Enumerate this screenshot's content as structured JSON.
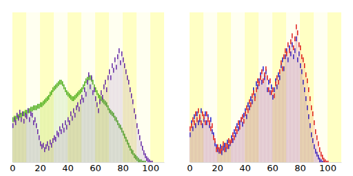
{
  "chart_data": [
    {
      "type": "bar",
      "tick_labels": "x",
      "x": [
        0,
        1,
        2,
        3,
        4,
        5,
        6,
        7,
        8,
        9,
        10,
        11,
        12,
        13,
        14,
        15,
        16,
        17,
        18,
        19,
        20,
        21,
        22,
        23,
        24,
        25,
        26,
        27,
        28,
        29,
        30,
        31,
        32,
        33,
        34,
        35,
        36,
        37,
        38,
        39,
        40,
        41,
        42,
        43,
        44,
        45,
        46,
        47,
        48,
        49,
        50,
        51,
        52,
        53,
        54,
        55,
        56,
        57,
        58,
        59,
        60,
        61,
        62,
        63,
        64,
        65,
        66,
        67,
        68,
        69,
        70,
        71,
        72,
        73,
        74,
        75,
        76,
        77,
        78,
        79,
        80,
        81,
        82,
        83,
        84,
        85,
        86,
        87,
        88,
        89,
        90,
        91,
        92,
        93,
        94,
        95,
        96,
        97,
        98,
        99,
        100,
        101,
        102,
        103,
        104
      ],
      "xlim": [
        0,
        110
      ],
      "xticks": [
        0,
        20,
        40,
        60,
        80,
        100
      ],
      "ylim": [
        0,
        100
      ],
      "series": [
        {
          "color": "#44aa11",
          "values": [
            30,
            31,
            31,
            32,
            32,
            33,
            33,
            34,
            34,
            35,
            35,
            36,
            36,
            37,
            37,
            38,
            38,
            38,
            39,
            39,
            40,
            40,
            41,
            42,
            43,
            44,
            45,
            47,
            48,
            50,
            51,
            52,
            53,
            54,
            55,
            55,
            54,
            52,
            50,
            48,
            47,
            46,
            45,
            44,
            44,
            45,
            46,
            47,
            48,
            49,
            50,
            52,
            54,
            56,
            57,
            58,
            58,
            57,
            55,
            52,
            50,
            48,
            46,
            45,
            44,
            43,
            42,
            41,
            40,
            38,
            36,
            35,
            34,
            33,
            31,
            30,
            28,
            26,
            25,
            23,
            21,
            19,
            17,
            15,
            13,
            11,
            9,
            8,
            6,
            5,
            4,
            3,
            2,
            2,
            1,
            1,
            1,
            0,
            0,
            0,
            0,
            0,
            0,
            0,
            0
          ]
        },
        {
          "color": "#5a1aa0",
          "values": [
            26,
            30,
            28,
            33,
            31,
            35,
            30,
            34,
            29,
            33,
            32,
            36,
            30,
            34,
            33,
            28,
            30,
            26,
            22,
            18,
            14,
            12,
            13,
            10,
            12,
            14,
            11,
            15,
            13,
            16,
            18,
            17,
            21,
            20,
            24,
            22,
            26,
            23,
            28,
            25,
            30,
            28,
            34,
            31,
            36,
            33,
            38,
            40,
            37,
            42,
            45,
            43,
            50,
            47,
            55,
            60,
            52,
            58,
            48,
            50,
            44,
            40,
            36,
            42,
            48,
            45,
            52,
            55,
            50,
            58,
            62,
            58,
            66,
            63,
            70,
            65,
            72,
            76,
            68,
            74,
            70,
            66,
            62,
            58,
            55,
            50,
            46,
            42,
            36,
            32,
            26,
            22,
            18,
            14,
            11,
            8,
            6,
            4,
            3,
            2,
            1,
            1,
            0,
            0,
            0
          ]
        }
      ]
    },
    {
      "type": "bar",
      "tick_labels": "x",
      "x": [
        0,
        1,
        2,
        3,
        4,
        5,
        6,
        7,
        8,
        9,
        10,
        11,
        12,
        13,
        14,
        15,
        16,
        17,
        18,
        19,
        20,
        21,
        22,
        23,
        24,
        25,
        26,
        27,
        28,
        29,
        30,
        31,
        32,
        33,
        34,
        35,
        36,
        37,
        38,
        39,
        40,
        41,
        42,
        43,
        44,
        45,
        46,
        47,
        48,
        49,
        50,
        51,
        52,
        53,
        54,
        55,
        56,
        57,
        58,
        59,
        60,
        61,
        62,
        63,
        64,
        65,
        66,
        67,
        68,
        69,
        70,
        71,
        72,
        73,
        74,
        75,
        76,
        77,
        78,
        79,
        80,
        81,
        82,
        83,
        84,
        85,
        86,
        87,
        88,
        89,
        90,
        91,
        92,
        93,
        94,
        95,
        96,
        97,
        98,
        99,
        100,
        101,
        102,
        103,
        104
      ],
      "xlim": [
        0,
        110
      ],
      "xticks": [
        0,
        20,
        40,
        60,
        80,
        100
      ],
      "ylim": [
        0,
        100
      ],
      "series": [
        {
          "color": "#1010cc",
          "values": [
            20,
            28,
            24,
            32,
            26,
            34,
            28,
            30,
            36,
            26,
            30,
            34,
            28,
            32,
            26,
            30,
            22,
            20,
            14,
            12,
            10,
            9,
            12,
            8,
            11,
            13,
            10,
            15,
            12,
            14,
            18,
            16,
            22,
            20,
            26,
            24,
            28,
            30,
            27,
            33,
            36,
            32,
            40,
            38,
            44,
            42,
            50,
            46,
            54,
            52,
            56,
            60,
            55,
            64,
            58,
            62,
            50,
            55,
            48,
            52,
            45,
            50,
            56,
            52,
            60,
            58,
            66,
            70,
            64,
            72,
            76,
            70,
            78,
            74,
            80,
            72,
            76,
            84,
            70,
            74,
            66,
            62,
            55,
            50,
            44,
            38,
            32,
            26,
            20,
            16,
            12,
            9,
            7,
            5,
            3,
            2,
            1,
            1,
            0,
            0,
            0,
            0,
            0,
            0,
            0
          ]
        },
        {
          "color": "#dd1010",
          "values": [
            24,
            26,
            30,
            28,
            34,
            30,
            36,
            32,
            28,
            34,
            32,
            28,
            34,
            30,
            28,
            24,
            26,
            18,
            16,
            10,
            12,
            10,
            9,
            11,
            14,
            10,
            13,
            12,
            16,
            15,
            16,
            20,
            18,
            24,
            22,
            28,
            25,
            30,
            32,
            29,
            34,
            38,
            36,
            42,
            40,
            46,
            48,
            44,
            50,
            56,
            54,
            58,
            62,
            56,
            60,
            64,
            58,
            50,
            56,
            48,
            50,
            46,
            54,
            58,
            55,
            62,
            68,
            64,
            72,
            76,
            74,
            80,
            76,
            82,
            86,
            78,
            84,
            92,
            88,
            80,
            78,
            72,
            70,
            66,
            60,
            56,
            50,
            44,
            38,
            34,
            28,
            22,
            18,
            14,
            10,
            7,
            5,
            3,
            2,
            1,
            1,
            0,
            0,
            0,
            0
          ]
        }
      ]
    }
  ]
}
